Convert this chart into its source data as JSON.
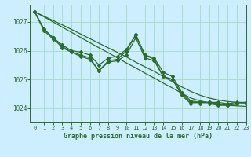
{
  "title": "Graphe pression niveau de la mer (hPa)",
  "background_color": "#cceeff",
  "grid_color": "#aaddcc",
  "line_color": "#2d6a2d",
  "marker_color": "#2d6a2d",
  "xlim": [
    -0.5,
    23
  ],
  "ylim": [
    1023.5,
    1027.6
  ],
  "yticks": [
    1024,
    1025,
    1026,
    1027
  ],
  "xticks": [
    0,
    1,
    2,
    3,
    4,
    5,
    6,
    7,
    8,
    9,
    10,
    11,
    12,
    13,
    14,
    15,
    16,
    17,
    18,
    19,
    20,
    21,
    22,
    23
  ],
  "series1": [
    1027.35,
    1026.75,
    1026.45,
    1026.2,
    1026.0,
    1025.95,
    1025.85,
    1025.5,
    1025.75,
    1025.8,
    1026.05,
    1026.55,
    1025.85,
    1025.75,
    1025.25,
    1025.1,
    1024.55,
    1024.25,
    1024.2,
    1024.2,
    1024.2,
    1024.15,
    1024.2,
    1024.2
  ],
  "series2": [
    1027.35,
    1026.7,
    1026.4,
    1026.15,
    1025.95,
    1025.85,
    1025.75,
    1025.3,
    1025.6,
    1025.65,
    1025.85,
    1026.45,
    1025.75,
    1025.65,
    1025.1,
    1025.0,
    1024.45,
    1024.15,
    1024.15,
    1024.15,
    1024.1,
    1024.1,
    1024.15,
    1024.15
  ],
  "series_main": [
    1027.35,
    1026.75,
    1026.45,
    1026.1,
    1025.95,
    1025.8,
    1025.7,
    1025.3,
    1025.65,
    1025.7,
    1026.0,
    1026.55,
    1025.85,
    1025.7,
    1025.1,
    1025.0,
    1024.5,
    1024.2,
    1024.2,
    1024.2,
    1024.15,
    1024.1,
    1024.15,
    1024.15
  ],
  "series_trend1": [
    1027.35,
    1027.18,
    1027.0,
    1026.82,
    1026.64,
    1026.46,
    1026.28,
    1026.1,
    1025.93,
    1025.75,
    1025.57,
    1025.4,
    1025.22,
    1025.05,
    1024.87,
    1024.7,
    1024.52,
    1024.35,
    1024.25,
    1024.18,
    1024.12,
    1024.1,
    1024.08,
    1024.06
  ],
  "series_trend2": [
    1027.35,
    1027.2,
    1027.05,
    1026.9,
    1026.74,
    1026.58,
    1026.42,
    1026.26,
    1026.1,
    1025.94,
    1025.78,
    1025.6,
    1025.44,
    1025.28,
    1025.1,
    1024.92,
    1024.74,
    1024.58,
    1024.45,
    1024.35,
    1024.28,
    1024.23,
    1024.2,
    1024.18
  ]
}
